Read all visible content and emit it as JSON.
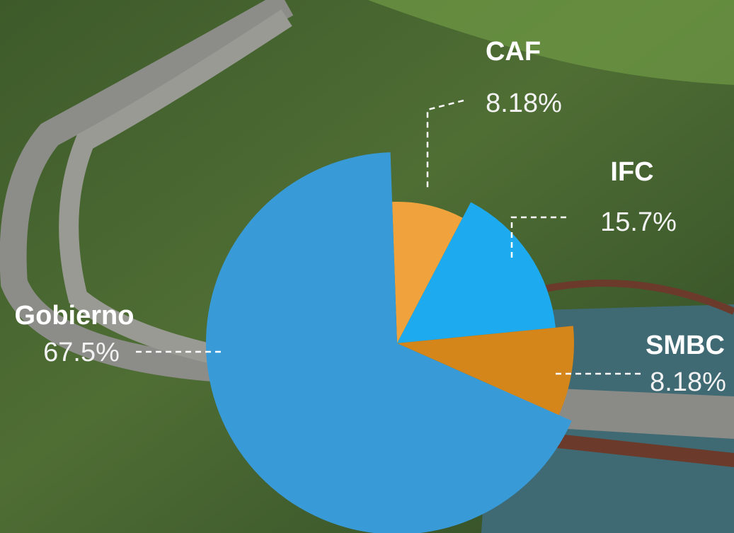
{
  "chart_data": {
    "type": "pie",
    "categories": [
      "CAF",
      "IFC",
      "SMBC",
      "Gobierno"
    ],
    "values": [
      8.18,
      15.7,
      8.18,
      67.5
    ],
    "value_labels": [
      "8.18%",
      "15.7%",
      "8.18%",
      "67.5%"
    ],
    "colors": [
      "#f0a33c",
      "#1eaaef",
      "#d4861a",
      "#389bd8"
    ]
  }
}
